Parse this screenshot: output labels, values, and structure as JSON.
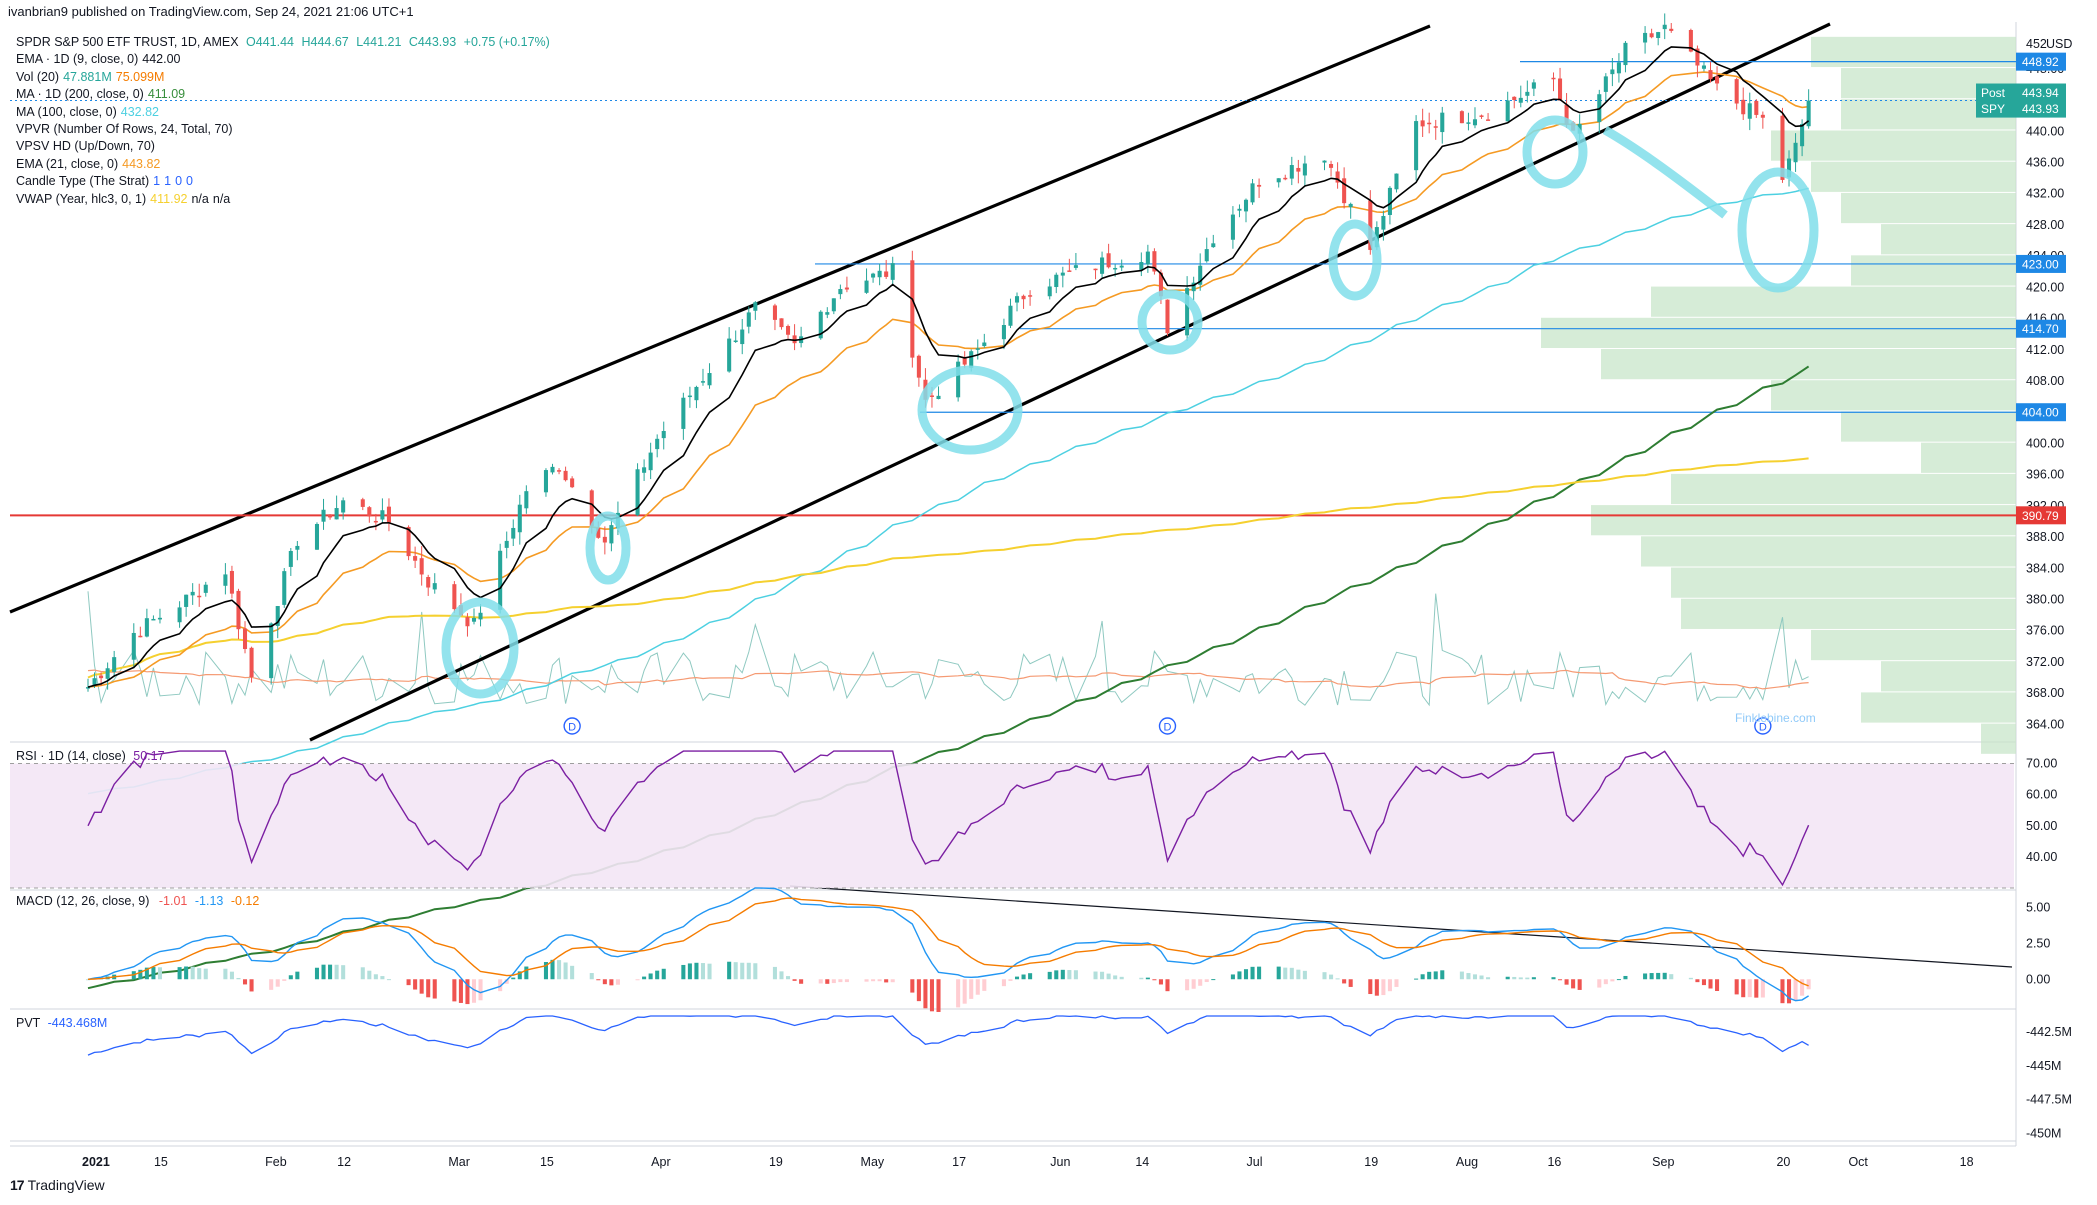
{
  "header": {
    "published": "ivanbrian9 published on TradingView.com, Sep 24, 2021 21:06 UTC+1",
    "footer_brand": "TradingView"
  },
  "legend": {
    "symbol": "SPDR S&P 500 ETF TRUST, 1D, AMEX",
    "ohlc": {
      "o": "O441.44",
      "h": "H444.67",
      "l": "L441.21",
      "c": "C443.93",
      "chg": "+0.75 (+0.17%)"
    },
    "rows": [
      {
        "label": "EMA · 1D (9, close, 0)",
        "values": [
          "442.00"
        ],
        "colors": [
          "#131722"
        ]
      },
      {
        "label": "Vol (20)",
        "values": [
          "47.881M",
          "75.099M"
        ],
        "colors": [
          "#26a69a",
          "#f57c00"
        ]
      },
      {
        "label": "MA · 1D (200, close, 0)",
        "values": [
          "411.09"
        ],
        "colors": [
          "#388e3c"
        ]
      },
      {
        "label": "MA (100, close, 0)",
        "values": [
          "432.82"
        ],
        "colors": [
          "#4dd0e1"
        ]
      },
      {
        "label": "VPVR (Number Of Rows, 24, Total, 70)",
        "values": [],
        "colors": []
      },
      {
        "label": "VPSV HD (Up/Down, 70)",
        "values": [],
        "colors": []
      },
      {
        "label": "EMA (21, close, 0)",
        "values": [
          "443.82"
        ],
        "colors": [
          "#f59a23"
        ]
      },
      {
        "label": "Candle Type (The Strat)",
        "values": [
          "1",
          "1",
          "0",
          "0"
        ],
        "colors": [
          "#2962ff",
          "#2962ff",
          "#2962ff",
          "#2962ff"
        ]
      },
      {
        "label": "VWAP (Year, hlc3, 0, 1)",
        "values": [
          "411.92",
          "n/a",
          "n/a"
        ],
        "colors": [
          "#f5d02f",
          "#131722",
          "#131722"
        ]
      }
    ]
  },
  "currency": "USD",
  "price_axis": {
    "ticks": [
      "448.00",
      "444.00",
      "440.00",
      "436.00",
      "432.00",
      "428.00",
      "424.00",
      "420.00",
      "416.00",
      "412.00",
      "408.00",
      "404.00",
      "400.00",
      "396.00",
      "392.00",
      "388.00",
      "384.00",
      "380.00",
      "376.00",
      "372.00",
      "368.00",
      "364.00"
    ],
    "top_label": "452",
    "tags": [
      {
        "text": "448.92",
        "value": 448.92,
        "color": "#1e88e5"
      },
      {
        "text": "443.94",
        "value": 443.94,
        "color": "#26a69a",
        "prefix": "Post"
      },
      {
        "text": "443.93",
        "value": 443.93,
        "color": "#26a69a",
        "prefix": "SPY"
      },
      {
        "text": "423.00",
        "value": 423.0,
        "color": "#1e88e5"
      },
      {
        "text": "414.70",
        "value": 414.7,
        "color": "#1e88e5"
      },
      {
        "text": "404.00",
        "value": 404.0,
        "color": "#1e88e5"
      },
      {
        "text": "390.79",
        "value": 390.79,
        "color": "#e53935"
      }
    ]
  },
  "time_axis": {
    "labels": [
      "2021",
      "15",
      "Feb",
      "12",
      "Mar",
      "15",
      "Apr",
      "19",
      "May",
      "17",
      "Jun",
      "14",
      "Jul",
      "19",
      "Aug",
      "16",
      "Sep",
      "20",
      "Oct",
      "18"
    ],
    "bold": [
      "2021"
    ]
  },
  "dividend_marker": "D",
  "watermark": "Finklebine.com",
  "rsi": {
    "label": "RSI · 1D (14, close)",
    "value": "50.17",
    "ticks": [
      "70.00",
      "60.00",
      "50.00",
      "40.00"
    ]
  },
  "macd": {
    "label": "MACD (12, 26, close, 9)",
    "values": [
      "-1.01",
      "-1.13",
      "-0.12"
    ],
    "colors": [
      "#ef5350",
      "#2196f3",
      "#f57c00"
    ],
    "ticks": [
      "5.00",
      "2.50",
      "0.00"
    ]
  },
  "pvt": {
    "label": "PVT",
    "value": "-443.468M",
    "ticks": [
      "-442.5M",
      "-445M",
      "-447.5M",
      "-450M"
    ]
  },
  "chart_data": {
    "type": "candlestick",
    "symbol": "SPY",
    "timeframe": "1D",
    "period": "2021-01-04 to 2021-09-24",
    "close_path": [
      {
        "x": "2021-01-04",
        "y": 368.8
      },
      {
        "x": "2021-01-11",
        "y": 375.7
      },
      {
        "x": "2021-01-19",
        "y": 380.0
      },
      {
        "x": "2021-01-25",
        "y": 383.8
      },
      {
        "x": "2021-01-29",
        "y": 370.1
      },
      {
        "x": "2021-02-05",
        "y": 387.7
      },
      {
        "x": "2021-02-12",
        "y": 392.6
      },
      {
        "x": "2021-02-19",
        "y": 390.0
      },
      {
        "x": "2021-02-25",
        "y": 382.3
      },
      {
        "x": "2021-03-04",
        "y": 376.7
      },
      {
        "x": "2021-03-12",
        "y": 394.1
      },
      {
        "x": "2021-03-17",
        "y": 397.3
      },
      {
        "x": "2021-03-24",
        "y": 387.5
      },
      {
        "x": "2021-04-01",
        "y": 400.6
      },
      {
        "x": "2021-04-08",
        "y": 408.5
      },
      {
        "x": "2021-04-16",
        "y": 417.3
      },
      {
        "x": "2021-04-22",
        "y": 412.3
      },
      {
        "x": "2021-04-29",
        "y": 420.1
      },
      {
        "x": "2021-05-07",
        "y": 422.1
      },
      {
        "x": "2021-05-12",
        "y": 405.4
      },
      {
        "x": "2021-05-19",
        "y": 411.0
      },
      {
        "x": "2021-05-28",
        "y": 420.0
      },
      {
        "x": "2021-06-07",
        "y": 422.9
      },
      {
        "x": "2021-06-15",
        "y": 424.5
      },
      {
        "x": "2021-06-18",
        "y": 414.9
      },
      {
        "x": "2021-06-25",
        "y": 426.6
      },
      {
        "x": "2021-07-02",
        "y": 433.7
      },
      {
        "x": "2021-07-12",
        "y": 437.1
      },
      {
        "x": "2021-07-19",
        "y": 424.9
      },
      {
        "x": "2021-07-26",
        "y": 441.0
      },
      {
        "x": "2021-08-06",
        "y": 442.5
      },
      {
        "x": "2021-08-16",
        "y": 446.6
      },
      {
        "x": "2021-08-19",
        "y": 439.2
      },
      {
        "x": "2021-08-27",
        "y": 450.3
      },
      {
        "x": "2021-09-02",
        "y": 453.2
      },
      {
        "x": "2021-09-10",
        "y": 445.4
      },
      {
        "x": "2021-09-17",
        "y": 441.4
      },
      {
        "x": "2021-09-20",
        "y": 434.0
      },
      {
        "x": "2021-09-22",
        "y": 437.9
      },
      {
        "x": "2021-09-24",
        "y": 443.93
      }
    ],
    "horizontal_levels": [
      448.92,
      423.0,
      414.7,
      404.0,
      390.79
    ],
    "ylim": [
      362,
      454
    ],
    "rsi_range": [
      30,
      75
    ],
    "rsi_band": [
      30,
      70
    ],
    "macd_range": [
      -2,
      6
    ],
    "pvt_range": [
      -450.5,
      -441
    ]
  }
}
